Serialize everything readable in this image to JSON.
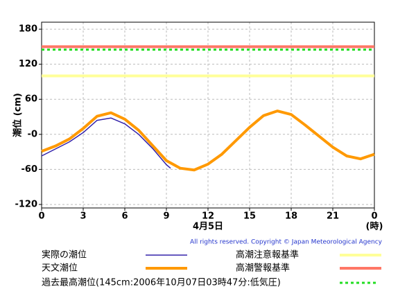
{
  "chart_data": {
    "type": "line",
    "ylabel": "潮位 (cm)",
    "xlabel": "4月5日",
    "xunit": "(時)",
    "copyright": "All rights reserved. Copyright © Japan Meteorological Agency",
    "xlim": [
      0,
      24
    ],
    "xticks": [
      0,
      3,
      6,
      9,
      12,
      15,
      18,
      21,
      {
        "value": 24,
        "label": "0"
      }
    ],
    "ylim": [
      -126,
      192
    ],
    "yticks": [
      180,
      120,
      60,
      {
        "value": 0,
        "label": "-0"
      },
      -60,
      -120
    ],
    "grid": true,
    "series": [
      {
        "name": "実際の潮位",
        "color": "#3322aa",
        "x": [
          0,
          1,
          2,
          3,
          4,
          5,
          6,
          7,
          8,
          9,
          9.3
        ],
        "values": [
          -37,
          -25,
          -13,
          3,
          24,
          28,
          18,
          0,
          -24,
          -52,
          -58
        ]
      },
      {
        "name": "天文潮位",
        "color": "#ff9900",
        "x": [
          0,
          1,
          2,
          3,
          4,
          5,
          6,
          7,
          8,
          9,
          10,
          11,
          12,
          13,
          14,
          15,
          16,
          17,
          18,
          19,
          20,
          21,
          22,
          23,
          24
        ],
        "values": [
          -29,
          -20,
          -8,
          10,
          31,
          37,
          26,
          7,
          -19,
          -45,
          -58,
          -61,
          -51,
          -34,
          -11,
          12,
          32,
          40,
          34,
          16,
          -3,
          -22,
          -37,
          -42,
          -34
        ]
      }
    ],
    "reference_lines": [
      {
        "name": "高潮注意報基準",
        "color": "#ffff99",
        "value": 100
      },
      {
        "name": "高潮警報基準",
        "color": "#ff7766",
        "value": 150
      },
      {
        "name": "過去最高潮位(145cm:2006年10月07日03時47分:低気圧)",
        "color": "#22dd22",
        "value": 145,
        "dashed": true
      }
    ]
  }
}
